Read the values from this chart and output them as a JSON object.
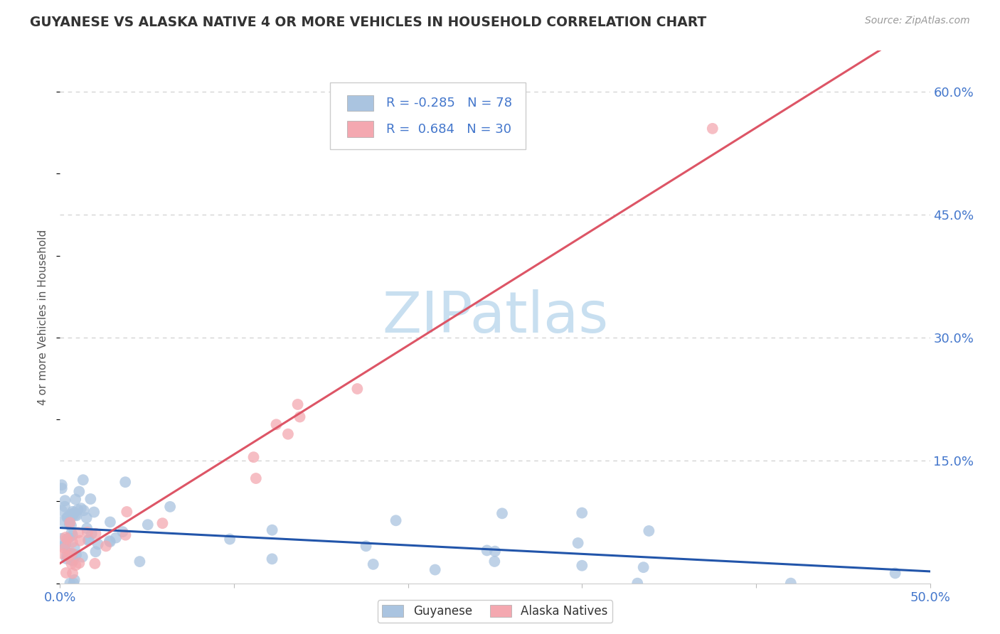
{
  "title": "GUYANESE VS ALASKA NATIVE 4 OR MORE VEHICLES IN HOUSEHOLD CORRELATION CHART",
  "source": "Source: ZipAtlas.com",
  "ylabel": "4 or more Vehicles in Household",
  "xlim": [
    0.0,
    0.5
  ],
  "ylim": [
    0.0,
    0.65
  ],
  "grid_yticks": [
    0.15,
    0.3,
    0.45,
    0.6
  ],
  "ytick_labels": [
    "15.0%",
    "30.0%",
    "45.0%",
    "60.0%"
  ],
  "xtick_positions": [
    0.0,
    0.1,
    0.2,
    0.3,
    0.4,
    0.5
  ],
  "xtick_labels": [
    "0.0%",
    "",
    "",
    "",
    "",
    "50.0%"
  ],
  "grid_color": "#cccccc",
  "background_color": "#ffffff",
  "color_blue": "#aac4e0",
  "color_pink": "#f4a8b0",
  "color_blue_line": "#2255aa",
  "color_pink_line": "#dd5566",
  "title_color": "#333333",
  "axis_color": "#4477cc",
  "legend_text_color": "#4477cc",
  "watermark_color": "#c8dff0",
  "watermark_text": "ZIPatlas",
  "r_guyanese": -0.285,
  "n_guyanese": 78,
  "r_alaska": 0.684,
  "n_alaska": 30
}
